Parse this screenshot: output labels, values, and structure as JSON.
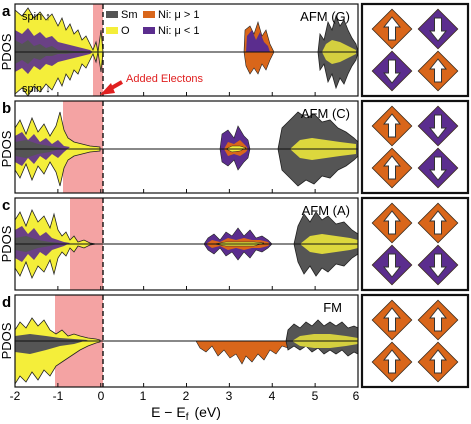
{
  "figure": {
    "xlabel": "E − E",
    "xlabel_sub": "f",
    "xlabel_unit": "(eV)",
    "ylabel": "PDOS",
    "x_ticks": [
      "-2",
      "-1",
      "0",
      "1",
      "2",
      "3",
      "4",
      "5",
      "6"
    ],
    "spin_up": "spin ↑",
    "spin_down": "spin ↓",
    "added_electrons_label": "Added Electons",
    "legend": [
      {
        "label": "Sm",
        "color": "#555555"
      },
      {
        "label": "Ni: μ > 1",
        "color": "#d9661a"
      },
      {
        "label": "O",
        "color": "#f4ee3a"
      },
      {
        "label": "Ni: μ < 1",
        "color": "#5b2d8e"
      }
    ],
    "colors": {
      "sm": "#555555",
      "ni_large": "#d9661a",
      "o": "#f4ee3a",
      "ni_small": "#5b2d8e",
      "shade": "#f4a3a3",
      "arrow": "#e02020"
    }
  },
  "panels": [
    {
      "letter": "a",
      "title": "AFM (G)",
      "spins": [
        "up",
        "down",
        "down",
        "up"
      ],
      "tiles": [
        "orange",
        "purple",
        "purple",
        "orange"
      ]
    },
    {
      "letter": "b",
      "title": "AFM (C)",
      "spins": [
        "up",
        "down",
        "up",
        "down"
      ],
      "tiles": [
        "orange",
        "purple",
        "orange",
        "purple"
      ]
    },
    {
      "letter": "c",
      "title": "AFM (A)",
      "spins": [
        "up",
        "up",
        "down",
        "down"
      ],
      "tiles": [
        "orange",
        "orange",
        "purple",
        "purple"
      ]
    },
    {
      "letter": "d",
      "title": "FM",
      "spins": [
        "up",
        "up",
        "up",
        "up"
      ],
      "tiles": [
        "orange",
        "orange",
        "orange",
        "orange"
      ]
    }
  ]
}
